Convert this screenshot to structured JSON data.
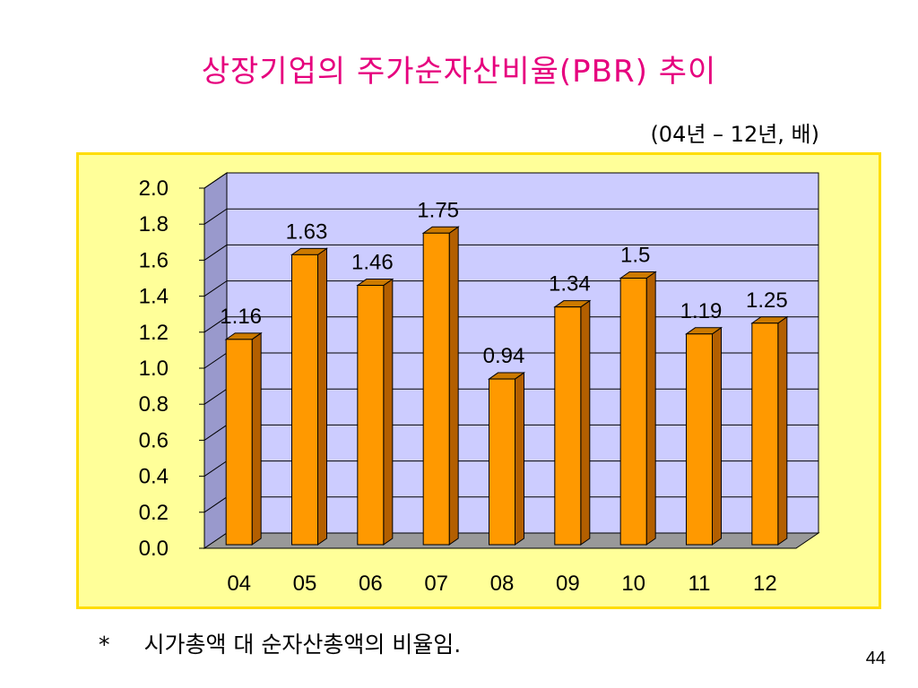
{
  "slide": {
    "title": "상장기업의 주가순자산비율(PBR) 추이",
    "unit": "(04년 – 12년, 배)",
    "footnote_marker": "*",
    "footnote": "시가총액 대 순자산총액의 비율임.",
    "page_number": "44"
  },
  "chart_data": {
    "type": "bar",
    "style": "3d-column",
    "title": "",
    "xlabel": "",
    "ylabel": "",
    "categories": [
      "04",
      "05",
      "06",
      "07",
      "08",
      "09",
      "10",
      "11",
      "12"
    ],
    "values": [
      1.16,
      1.63,
      1.46,
      1.75,
      0.94,
      1.34,
      1.5,
      1.19,
      1.25
    ],
    "data_labels": [
      "1.16",
      "1.63",
      "1.46",
      "1.75",
      "0.94",
      "1.34",
      "1.5",
      "1.19",
      "1.25"
    ],
    "ylim": [
      0,
      2.0
    ],
    "yticks": [
      "0.0",
      "0.2",
      "0.4",
      "0.6",
      "0.8",
      "1.0",
      "1.2",
      "1.4",
      "1.6",
      "1.8",
      "2.0"
    ],
    "grid": true,
    "legend": "none",
    "colors": {
      "bar_front": "#ff9900",
      "bar_side": "#b35f00",
      "bar_top": "#cc7a00",
      "plot_back": "#ccccff",
      "plot_side": "#9999cc",
      "floor": "#999999",
      "frame_bg": "#ffff99",
      "frame_border": "#ffdd00",
      "title": "#e6007e"
    }
  }
}
